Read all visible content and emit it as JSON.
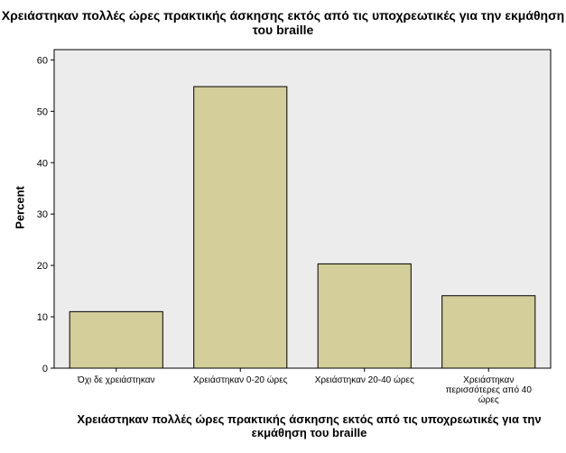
{
  "chart_data": {
    "type": "bar",
    "title": "Χρειάστηκαν πολλές ώρες πρακτικής άσκησης εκτός από τις υποχρεωτικές για την εκμάθηση του braille",
    "xlabel": "Χρειάστηκαν πολλές ώρες πρακτικής άσκησης εκτός από τις υποχρεωτικές για την εκμάθηση του braille",
    "ylabel": "Percent",
    "categories": [
      "Όχι δε χρειάστηκαν",
      "Χρειάστηκαν 0-20 ώρες",
      "Χρειάστηκαν 20-40 ώρες",
      "Χρειάστηκαν περισσότερες από 40 ώρες"
    ],
    "category_lines": [
      [
        "Όχι δε χρειάστηκαν"
      ],
      [
        "Χρειάστηκαν 0-20 ώρες"
      ],
      [
        "Χρειάστηκαν 20-40 ώρες"
      ],
      [
        "Χρειάστηκαν",
        "περισσότερες από 40",
        "ώρες"
      ]
    ],
    "values": [
      11.0,
      54.8,
      20.3,
      14.1
    ],
    "ylim": [
      0,
      62
    ],
    "yticks": [
      0,
      10,
      20,
      30,
      40,
      50,
      60
    ],
    "grid": false,
    "bar_color": "#d3ce9a",
    "plot_background": "#ececec"
  }
}
